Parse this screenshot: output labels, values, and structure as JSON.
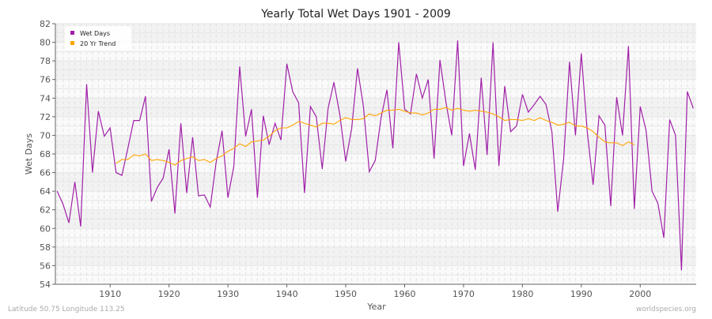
{
  "chart_data": {
    "type": "line",
    "title": "Yearly Total Wet Days 1901 - 2009",
    "xlabel": "Year",
    "ylabel": "Wet Days",
    "xlim": [
      1900.7,
      2009.5
    ],
    "ylim": [
      54,
      82
    ],
    "xticks": [
      1910,
      1920,
      1930,
      1940,
      1950,
      1960,
      1970,
      1980,
      1990,
      2000
    ],
    "yticks": [
      54,
      56,
      58,
      60,
      62,
      64,
      66,
      68,
      70,
      72,
      74,
      76,
      78,
      80,
      82
    ],
    "grid": true,
    "legend_placement": "top-left",
    "series": [
      {
        "name": "Wet Days",
        "color": "#a020a8",
        "start_year": 1901,
        "values": [
          64.0,
          62.6,
          60.6,
          65.0,
          60.2,
          75.5,
          66.0,
          72.6,
          69.9,
          70.8,
          66.0,
          65.7,
          68.6,
          71.6,
          71.6,
          74.2,
          62.9,
          64.4,
          65.4,
          68.5,
          61.6,
          71.3,
          63.8,
          69.8,
          63.5,
          63.6,
          62.3,
          67.1,
          70.5,
          63.3,
          66.7,
          77.4,
          69.9,
          72.8,
          63.3,
          72.1,
          69.0,
          71.3,
          69.5,
          77.7,
          74.7,
          73.5,
          63.8,
          73.1,
          72.0,
          66.4,
          72.9,
          75.7,
          72.2,
          67.2,
          70.7,
          77.2,
          73.1,
          66.1,
          67.3,
          71.9,
          74.9,
          68.6,
          80.0,
          72.8,
          72.3,
          76.6,
          74.0,
          76.0,
          67.5,
          78.1,
          73.6,
          70.0,
          80.2,
          66.7,
          70.2,
          66.3,
          76.2,
          67.9,
          80.0,
          66.7,
          75.3,
          70.4,
          71.0,
          74.4,
          72.5,
          73.3,
          74.2,
          73.3,
          70.4,
          61.8,
          67.5,
          77.9,
          70.0,
          78.8,
          70.4,
          64.7,
          72.1,
          71.1,
          62.4,
          74.1,
          70.0,
          79.6,
          62.1,
          73.1,
          70.5,
          64.0,
          62.7,
          59.0,
          71.7,
          70.0,
          55.5,
          74.7,
          72.9
        ]
      },
      {
        "name": "20 Yr Trend",
        "color": "#ffa500",
        "start_year": 1911,
        "values": [
          67.0,
          67.4,
          67.4,
          67.9,
          67.8,
          68.0,
          67.3,
          67.4,
          67.3,
          67.1,
          66.8,
          67.3,
          67.5,
          67.7,
          67.3,
          67.4,
          67.1,
          67.5,
          67.8,
          68.3,
          68.6,
          69.1,
          68.8,
          69.3,
          69.4,
          69.5,
          69.9,
          70.5,
          70.8,
          70.8,
          71.1,
          71.5,
          71.3,
          71.1,
          70.9,
          71.3,
          71.3,
          71.2,
          71.6,
          71.9,
          71.7,
          71.7,
          71.8,
          72.3,
          72.1,
          72.4,
          72.7,
          72.7,
          72.8,
          72.6,
          72.4,
          72.4,
          72.2,
          72.4,
          72.8,
          72.8,
          73.0,
          72.7,
          72.9,
          72.7,
          72.6,
          72.7,
          72.6,
          72.5,
          72.3,
          72.0,
          71.6,
          71.7,
          71.7,
          71.6,
          71.8,
          71.6,
          71.9,
          71.6,
          71.4,
          71.1,
          71.2,
          71.4,
          71.0,
          71.0,
          70.8,
          70.4,
          69.8,
          69.3,
          69.2,
          69.2,
          68.9,
          69.3,
          69.0
        ]
      }
    ]
  },
  "footer": {
    "left": "Latitude 50.75 Longitude 113.25",
    "right": "worldspecies.org"
  }
}
